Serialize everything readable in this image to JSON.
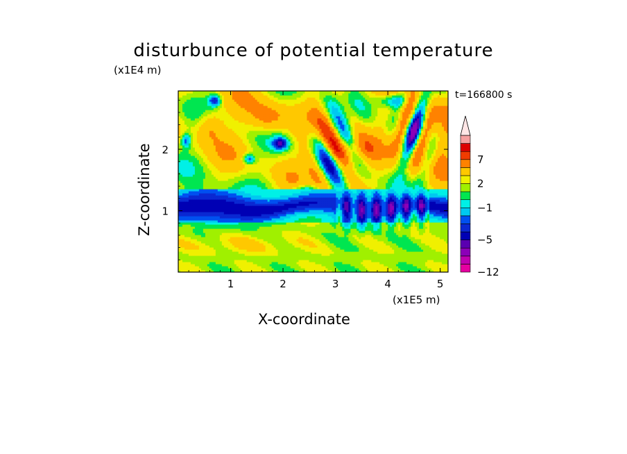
{
  "chart_data": {
    "type": "heatmap",
    "title": "disturbunce of potential temperature",
    "xlabel": "X-coordinate",
    "ylabel": "Z-coordinate",
    "x_unit": "(x1E5 m)",
    "y_unit": "(x1E4 m)",
    "time_label": "t=166800 s",
    "xlim": [
      0,
      5.15
    ],
    "ylim": [
      0,
      2.95
    ],
    "x_ticks": [
      1,
      2,
      3,
      4,
      5
    ],
    "x_tick_labels": [
      "1",
      "2",
      "3",
      "4",
      "5"
    ],
    "y_ticks": [
      1,
      2
    ],
    "y_tick_labels": [
      "1",
      "2"
    ],
    "colorbar": {
      "labels": [
        {
          "value": 7,
          "text": "7"
        },
        {
          "value": 2,
          "text": "2"
        },
        {
          "value": -1,
          "text": "−1"
        },
        {
          "value": -5,
          "text": "−5"
        },
        {
          "value": -12,
          "text": "−12"
        }
      ],
      "levels": [
        -12,
        -10,
        -8,
        -6,
        -5,
        -4,
        -3,
        -2,
        -1,
        0,
        1,
        2,
        3,
        5,
        7,
        9,
        11
      ],
      "colors": [
        "#e600a0",
        "#c000b0",
        "#8c00b8",
        "#5a00b0",
        "#0000b4",
        "#0a28d2",
        "#0050f0",
        "#00c8f0",
        "#00f0e6",
        "#00e650",
        "#a0f000",
        "#f0f000",
        "#ffc800",
        "#ff8200",
        "#f03c00",
        "#dc0000",
        "#f5a0a0"
      ],
      "extend_color": "#ffe6e6"
    },
    "field_summary": [
      {
        "region": "upper troposphere, z 1.4-2.95, x 0-5.15",
        "pattern": "mixed positive and negative anomalies, wave trains near x 2.7-3.4 and x 4.2-4.8",
        "range": [
          -5,
          9
        ]
      },
      {
        "region": "band z 0.85-1.35, x 0-5.15",
        "pattern": "negative anomaly layer",
        "range": [
          -5,
          -1
        ]
      },
      {
        "region": "lower layer z 0-0.85",
        "pattern": "weak positive anomalies",
        "range": [
          0,
          3
        ]
      }
    ]
  }
}
